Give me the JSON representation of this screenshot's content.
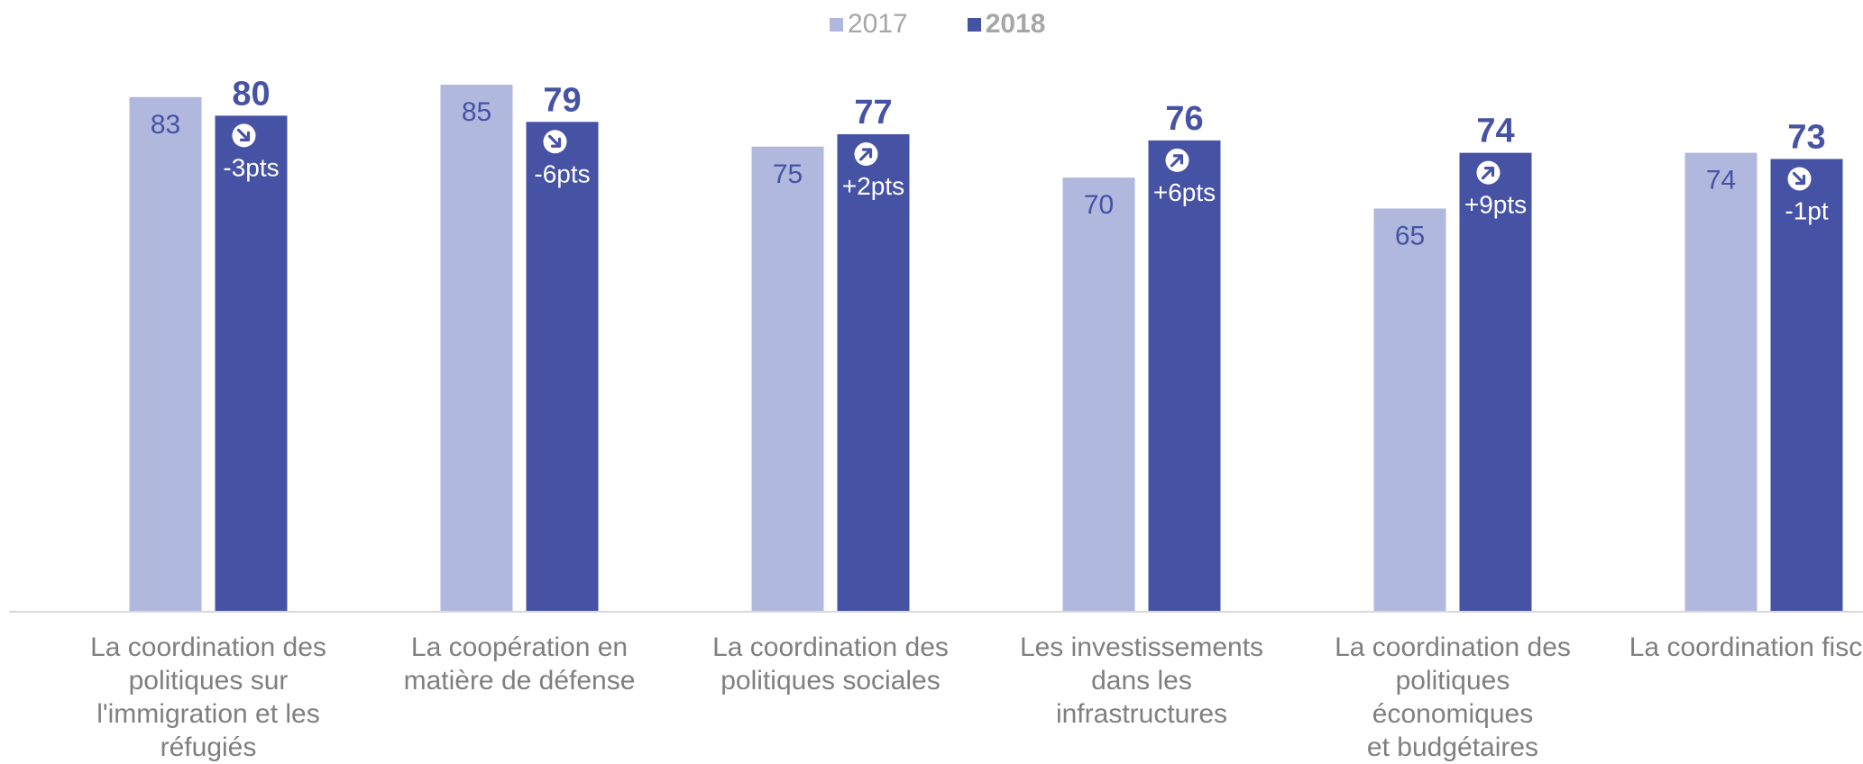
{
  "colors": {
    "series_2017": "#b0b8de",
    "series_2018": "#4653a5",
    "label_light": "#4653a5",
    "label_dark_bg": "#ffffff",
    "category_text": "#7f7f7f",
    "legend_text": "#a6a6a6",
    "axis_line": "#d9d9d9"
  },
  "legend": [
    {
      "label": "2017",
      "bold": false
    },
    {
      "label": "2018",
      "bold": true
    }
  ],
  "chart_data": {
    "type": "bar",
    "title": "",
    "xlabel": "",
    "ylabel": "",
    "ylim": [
      0,
      95
    ],
    "grid": false,
    "legend_position": "top-center",
    "categories": [
      "La coordination des politiques sur l'immigration et les réfugiés",
      "La coopération en matière de défense",
      "La coordination des politiques sociales",
      "Les investissements dans les infrastructures",
      "La coordination des politiques économiques et budgétaires",
      "La coordination fiscale"
    ],
    "category_lines": [
      [
        "La coordination des",
        "politiques sur",
        "l'immigration et les",
        "réfugiés"
      ],
      [
        "La coopération en",
        "matière de défense"
      ],
      [
        "La coordination des",
        "politiques sociales"
      ],
      [
        "Les investissements",
        "dans les infrastructures"
      ],
      [
        "La coordination des",
        "politiques économiques",
        "et budgétaires"
      ],
      [
        "La coordination fiscale"
      ]
    ],
    "series": [
      {
        "name": "2017",
        "values": [
          83,
          85,
          75,
          70,
          65,
          74
        ]
      },
      {
        "name": "2018",
        "values": [
          80,
          79,
          77,
          76,
          74,
          73
        ]
      }
    ],
    "changes": [
      {
        "text": "-3pts",
        "direction": "down"
      },
      {
        "text": "-6pts",
        "direction": "down"
      },
      {
        "text": "+2pts",
        "direction": "up"
      },
      {
        "text": "+6pts",
        "direction": "up"
      },
      {
        "text": "+9pts",
        "direction": "up"
      },
      {
        "text": "-1pt",
        "direction": "down"
      }
    ]
  }
}
